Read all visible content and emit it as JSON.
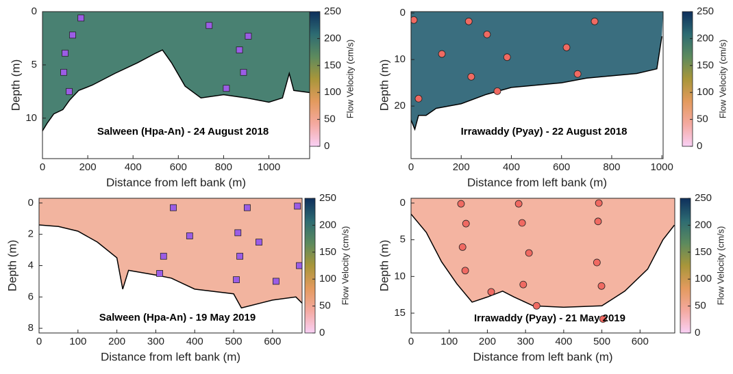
{
  "chart_data": [
    {
      "type": "scatter",
      "title": "Salween (Hpa-An) - 24 August 2018",
      "xlabel": "Distance from left bank (m)",
      "ylabel": "Depth (m)",
      "xlim": [
        0,
        1180
      ],
      "ylim": [
        0,
        13.8
      ],
      "xticks": [
        0,
        200,
        400,
        600,
        800,
        1000
      ],
      "yticks": [
        0,
        5,
        10
      ],
      "marker": "square",
      "marker_color": "#9b5de5",
      "fill_color": "#3f7a6a",
      "x": [
        170,
        133,
        100,
        94,
        118,
        736,
        909,
        870,
        888,
        812
      ],
      "y": [
        0.6,
        2.2,
        3.9,
        5.7,
        7.5,
        1.3,
        2.3,
        3.6,
        5.7,
        7.2
      ],
      "bed": {
        "x": [
          0,
          20,
          50,
          90,
          120,
          160,
          220,
          320,
          420,
          500,
          530,
          570,
          630,
          700,
          800,
          900,
          1000,
          1060,
          1090,
          1110,
          1180
        ],
        "y": [
          11.2,
          10.5,
          9.6,
          9.2,
          8.3,
          7.4,
          6.9,
          5.8,
          4.8,
          3.9,
          3.6,
          4.8,
          7.0,
          8.1,
          7.8,
          8.1,
          8.5,
          8.1,
          5.8,
          7.4,
          7.6
        ]
      },
      "clabel": "Flow Velocity (cm/s)",
      "clim": [
        0,
        250
      ],
      "cticks": [
        0,
        50,
        100,
        150,
        200,
        250
      ],
      "colormap": [
        "#f9d0f5",
        "#f4a9a0",
        "#e39a5e",
        "#a8963a",
        "#5c8a5e",
        "#2d6b72",
        "#0e2f5c"
      ]
    },
    {
      "type": "scatter",
      "title": "Irrawaddy (Pyay) - 22 August 2018",
      "xlabel": "Distance from left bank (m)",
      "ylabel": "Depth (m)",
      "xlim": [
        0,
        1005
      ],
      "ylim": [
        -0.3,
        31.3
      ],
      "xticks": [
        0,
        200,
        400,
        600,
        800,
        1000
      ],
      "yticks": [
        0,
        10,
        20
      ],
      "marker": "circle",
      "marker_color": "#f06a62",
      "fill_color": "#2f6678",
      "x": [
        11,
        230,
        303,
        732,
        123,
        383,
        620,
        240,
        344,
        664,
        30
      ],
      "y": [
        1.5,
        1.8,
        4.6,
        1.8,
        8.8,
        9.5,
        7.4,
        13.7,
        16.8,
        13.1,
        18.4
      ],
      "bed": {
        "x": [
          0,
          15,
          30,
          60,
          100,
          200,
          300,
          400,
          500,
          600,
          700,
          800,
          900,
          980,
          1000
        ],
        "y": [
          23,
          25,
          22,
          22,
          20.5,
          19.5,
          17.5,
          16,
          15.5,
          15,
          14,
          13.5,
          13,
          12,
          5
        ]
      },
      "clabel": "Flow Velocity (cm/s)",
      "clim": [
        0,
        250
      ],
      "cticks": [
        0,
        50,
        100,
        150,
        200,
        250
      ],
      "colormap": [
        "#f9d0f5",
        "#f4a9a0",
        "#e39a5e",
        "#a8963a",
        "#5c8a5e",
        "#2d6b72",
        "#0e2f5c"
      ]
    },
    {
      "type": "scatter",
      "title": "Salween (Hpa-An) - 19 May 2019",
      "xlabel": "Distance from left bank (m)",
      "ylabel": "Depth (m)",
      "xlim": [
        0,
        676
      ],
      "ylim": [
        -0.3,
        8.3
      ],
      "xticks": [
        0,
        100,
        200,
        300,
        400,
        500,
        600
      ],
      "yticks": [
        0,
        2,
        4,
        6,
        8
      ],
      "marker": "square",
      "marker_color": "#9b5de5",
      "fill_color": "#f1b09a",
      "x": [
        345,
        535,
        664,
        511,
        387,
        565,
        320,
        516,
        669,
        310,
        507,
        609
      ],
      "y": [
        0.3,
        0.3,
        0.2,
        1.9,
        2.1,
        2.5,
        3.4,
        3.4,
        4.0,
        4.5,
        4.9,
        5.0
      ],
      "bed": {
        "x": [
          0,
          50,
          100,
          150,
          200,
          215,
          230,
          300,
          340,
          400,
          500,
          520,
          600,
          660,
          676
        ],
        "y": [
          1.4,
          1.5,
          1.8,
          2.5,
          3.5,
          5.5,
          4.3,
          4.6,
          4.8,
          5.5,
          5.8,
          6.7,
          6.2,
          6.0,
          6.4
        ]
      },
      "clabel": "Flow Velocity (cm/s)",
      "clim": [
        0,
        250
      ],
      "cticks": [
        0,
        50,
        100,
        150,
        200,
        250
      ],
      "colormap": [
        "#f9d0f5",
        "#f4a9a0",
        "#e39a5e",
        "#a8963a",
        "#5c8a5e",
        "#2d6b72",
        "#0e2f5c"
      ]
    },
    {
      "type": "scatter",
      "title": "Irrawaddy (Pyay)  - 21 May 2019",
      "xlabel": "Distance from left bank (m)",
      "ylabel": "Depth (m)",
      "xlim": [
        0,
        691
      ],
      "ylim": [
        -0.65,
        17.7
      ],
      "xticks": [
        0,
        100,
        200,
        300,
        400,
        500,
        600
      ],
      "yticks": [
        0,
        5,
        10,
        15
      ],
      "marker": "circle",
      "marker_color": "#f06a62",
      "fill_color": "#f3b09c",
      "x": [
        131,
        282,
        492,
        144,
        291,
        135,
        309,
        142,
        294,
        210,
        329,
        490,
        487,
        499,
        503
      ],
      "y": [
        0.1,
        0.1,
        0,
        2.8,
        2.7,
        6.0,
        6.8,
        9.2,
        11.1,
        12.1,
        14.0,
        2.5,
        8.1,
        11.3,
        15.8
      ],
      "bed": {
        "x": [
          0,
          40,
          80,
          120,
          160,
          200,
          240,
          270,
          320,
          400,
          500,
          560,
          620,
          660,
          690
        ],
        "y": [
          1.5,
          4,
          8,
          11,
          13.5,
          12.8,
          12,
          12.8,
          14,
          14.2,
          14,
          12,
          9,
          5,
          3
        ]
      },
      "clabel": "Flow Velocity (cm/s)",
      "clim": [
        0,
        250
      ],
      "cticks": [
        0,
        50,
        100,
        150,
        200,
        250
      ],
      "colormap": [
        "#f9d0f5",
        "#f4a9a0",
        "#e39a5e",
        "#a8963a",
        "#5c8a5e",
        "#2d6b72",
        "#0e2f5c"
      ]
    }
  ]
}
